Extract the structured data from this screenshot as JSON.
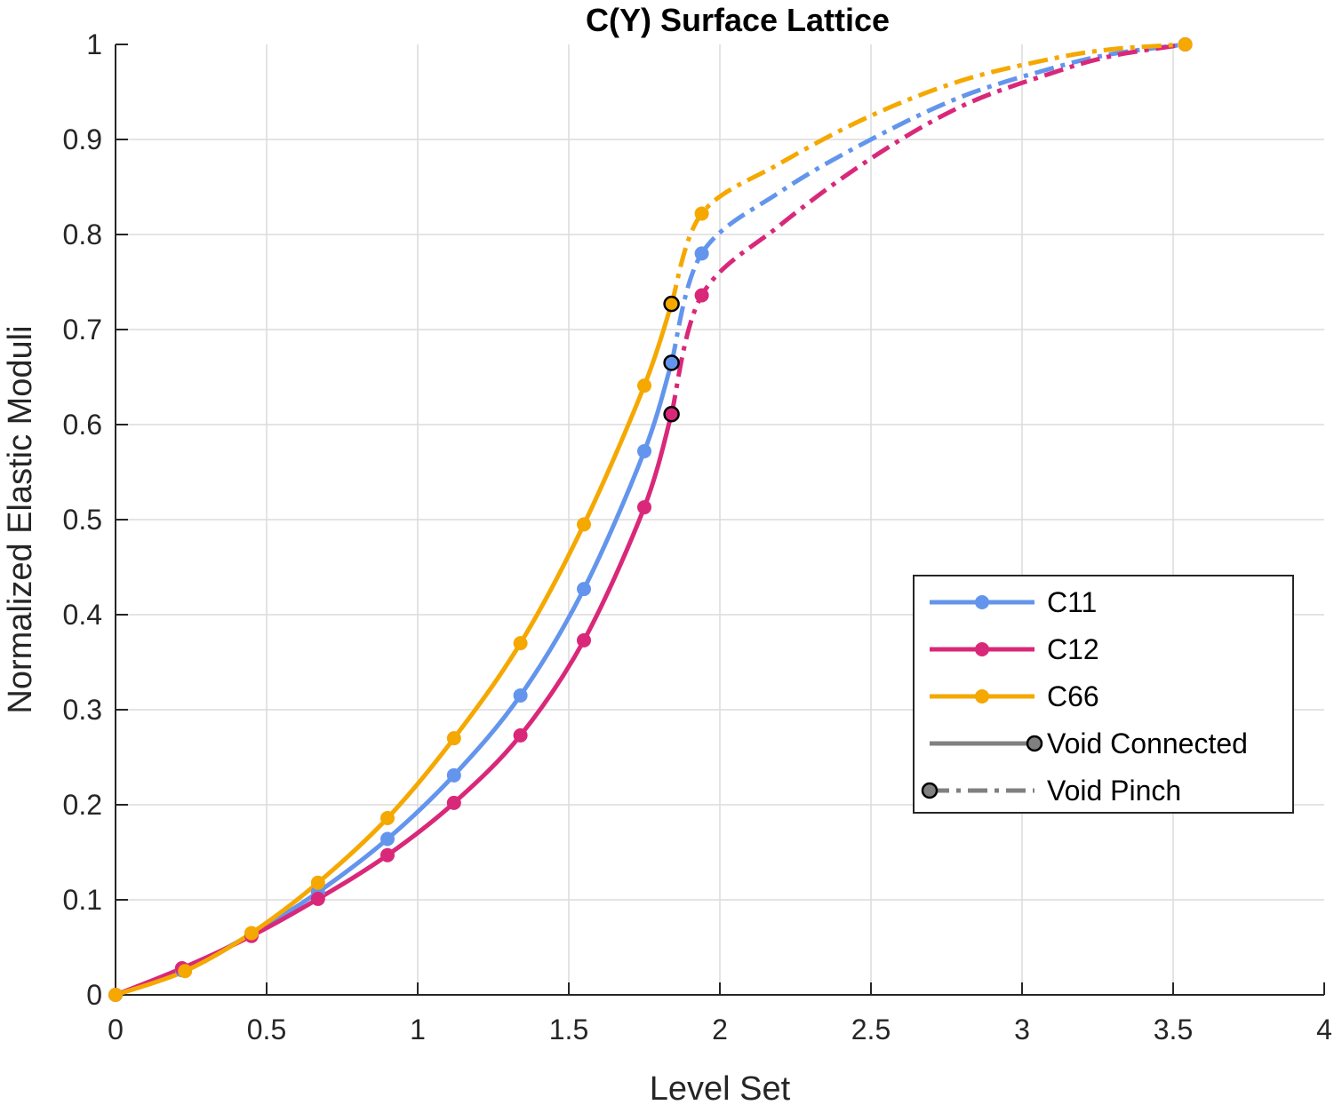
{
  "chart_data": {
    "type": "line",
    "title": "C(Y) Surface Lattice",
    "xlabel": "Level Set",
    "ylabel": "Normalized Elastic Moduli",
    "xlim": [
      0,
      4
    ],
    "ylim": [
      0,
      1
    ],
    "xticks": [
      "0",
      "0.5",
      "1",
      "1.5",
      "2",
      "2.5",
      "3",
      "3.5",
      "4"
    ],
    "yticks": [
      "0",
      "0.1",
      "0.2",
      "0.3",
      "0.4",
      "0.5",
      "0.6",
      "0.7",
      "0.8",
      "0.9",
      "1"
    ],
    "grid": true,
    "legend_position": "lower-right",
    "series": [
      {
        "name": "C11",
        "color": "#6495ED",
        "connected": {
          "x": [
            0,
            0.22,
            0.45,
            0.67,
            0.9,
            1.12,
            1.34,
            1.55,
            1.75,
            1.84
          ],
          "y": [
            0,
            0.026,
            0.064,
            0.108,
            0.164,
            0.231,
            0.315,
            0.427,
            0.572,
            0.665
          ]
        },
        "pinch": {
          "x": [
            1.84,
            1.94,
            2.2,
            2.5,
            2.8,
            3.1,
            3.3,
            3.54
          ],
          "y": [
            0.665,
            0.78,
            0.845,
            0.9,
            0.945,
            0.975,
            0.99,
            1.0
          ]
        }
      },
      {
        "name": "C12",
        "color": "#D9287A",
        "connected": {
          "x": [
            0,
            0.22,
            0.45,
            0.67,
            0.9,
            1.12,
            1.34,
            1.55,
            1.75,
            1.84
          ],
          "y": [
            0,
            0.028,
            0.062,
            0.101,
            0.147,
            0.202,
            0.273,
            0.373,
            0.513,
            0.611
          ]
        },
        "pinch": {
          "x": [
            1.84,
            1.94,
            2.2,
            2.5,
            2.8,
            3.1,
            3.3,
            3.54
          ],
          "y": [
            0.611,
            0.736,
            0.81,
            0.88,
            0.935,
            0.97,
            0.988,
            1.0
          ]
        }
      },
      {
        "name": "C66",
        "color": "#F5A800",
        "connected": {
          "x": [
            0,
            0.23,
            0.45,
            0.67,
            0.9,
            1.12,
            1.34,
            1.55,
            1.75,
            1.84
          ],
          "y": [
            0,
            0.025,
            0.065,
            0.118,
            0.186,
            0.27,
            0.37,
            0.495,
            0.641,
            0.727
          ]
        },
        "pinch": {
          "x": [
            1.84,
            1.94,
            2.2,
            2.5,
            2.8,
            3.1,
            3.3,
            3.54
          ],
          "y": [
            0.727,
            0.822,
            0.875,
            0.925,
            0.962,
            0.985,
            0.995,
            1.0
          ]
        }
      }
    ],
    "legend": [
      {
        "label": "C11",
        "style": "series",
        "color": "#6495ED"
      },
      {
        "label": "C12",
        "style": "series",
        "color": "#D9287A"
      },
      {
        "label": "C66",
        "style": "series",
        "color": "#F5A800"
      },
      {
        "label": "Void Connected",
        "style": "solid-end-marker",
        "color": "#808080"
      },
      {
        "label": "Void Pinch",
        "style": "dashdot-start-marker",
        "color": "#808080"
      }
    ]
  }
}
